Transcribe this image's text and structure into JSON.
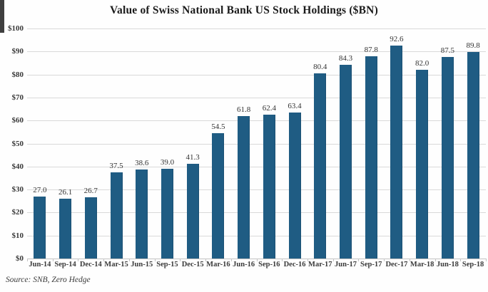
{
  "chart_data": {
    "type": "bar",
    "title": "Value of Swiss National Bank US Stock Holdings ($BN)",
    "categories": [
      "Jun-14",
      "Sep-14",
      "Dec-14",
      "Mar-15",
      "Jun-15",
      "Sep-15",
      "Dec-15",
      "Mar-16",
      "Jun-16",
      "Sep-16",
      "Dec-16",
      "Mar-17",
      "Jun-17",
      "Sep-17",
      "Dec-17",
      "Mar-18",
      "Jun-18",
      "Sep-18"
    ],
    "values": [
      27.0,
      26.1,
      26.7,
      37.5,
      38.6,
      39.0,
      41.3,
      54.5,
      61.8,
      62.4,
      63.4,
      80.4,
      84.3,
      87.8,
      92.6,
      82.0,
      87.5,
      89.8
    ],
    "ylim": [
      0,
      100
    ],
    "y_ticks": [
      0,
      10,
      20,
      30,
      40,
      50,
      60,
      70,
      80,
      90,
      100
    ],
    "y_tick_labels": [
      "$0",
      "$10",
      "$20",
      "$30",
      "$40",
      "$50",
      "$60",
      "$70",
      "$80",
      "$90",
      "$100"
    ],
    "xlabel": "",
    "ylabel": "",
    "grid": true,
    "legend_position": "none",
    "data_labels": true,
    "colors": {
      "bar": "#1f5c83",
      "gridline": "#d9d9d9",
      "text": "#3a3a3a",
      "title": "#1a1a1a"
    },
    "source": "Source: SNB, Zero Hedge"
  }
}
